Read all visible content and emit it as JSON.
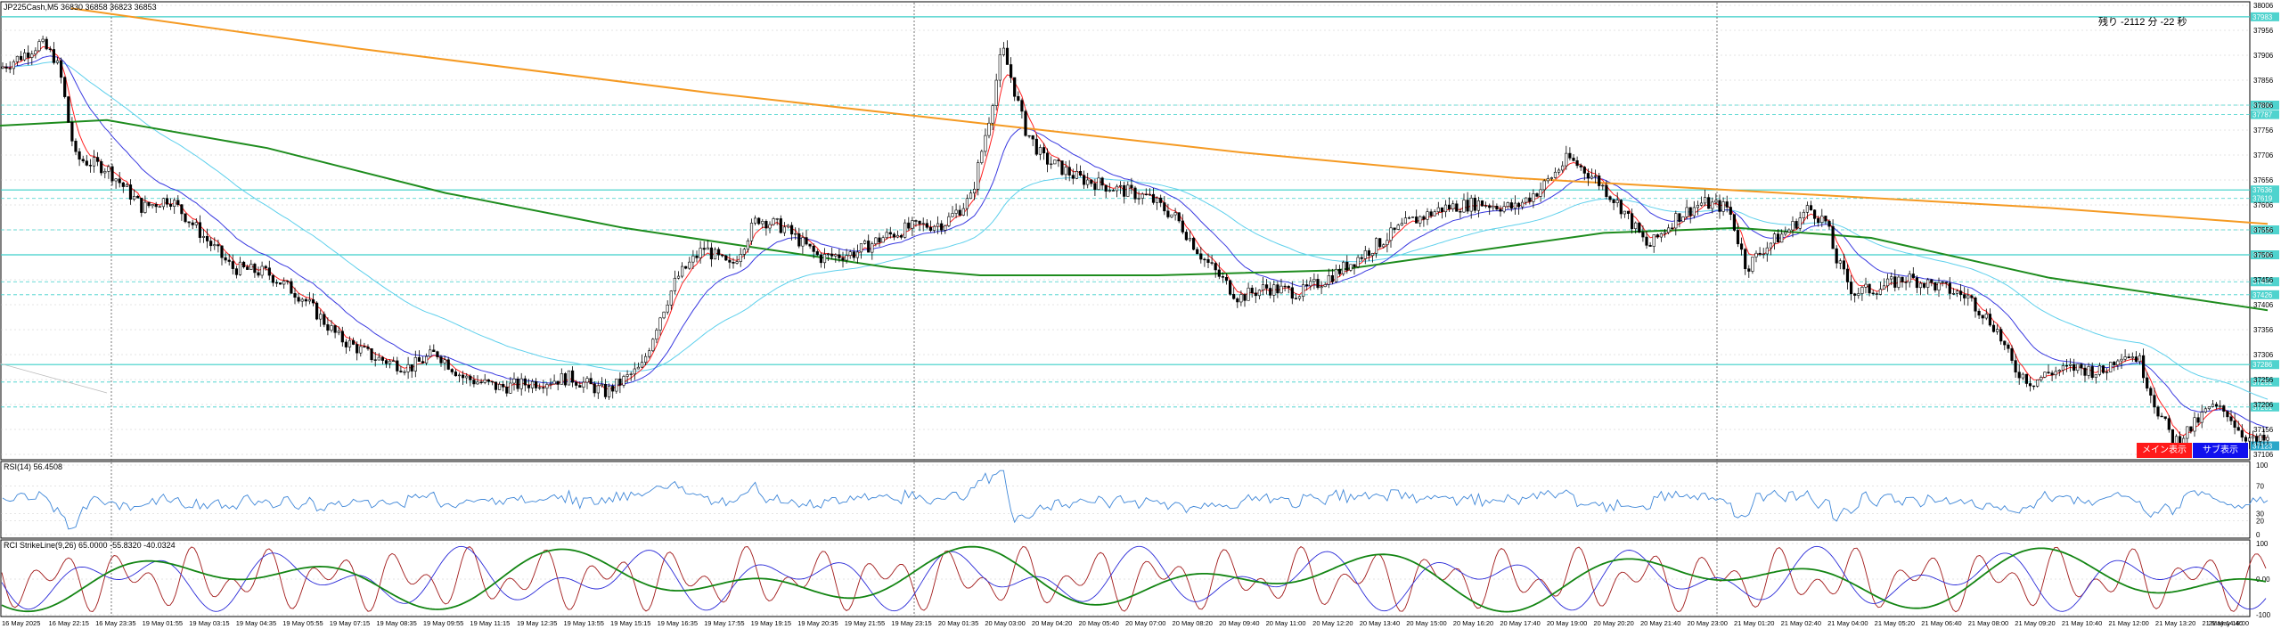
{
  "main_panel": {
    "header": "JP225Cash,M5 36830 36858 36823 36853",
    "countdown": "残り -2112 分 -22 秒",
    "buttons": {
      "main_label": "メイン表示",
      "sub_label": "サブ表示"
    },
    "price_axis_labels": [
      "38006",
      "37956",
      "37906",
      "37856",
      "37806",
      "37756",
      "37706",
      "37656",
      "37606",
      "37556",
      "37506",
      "37456",
      "37406",
      "37356",
      "37306",
      "37256",
      "37206",
      "37156",
      "37106"
    ],
    "level_tags": [
      "37983",
      "37806",
      "37787",
      "37636",
      "37619",
      "37556",
      "37506",
      "37452",
      "37426",
      "37286",
      "37251",
      "37201"
    ],
    "current_price_tag": "37123"
  },
  "rsi_panel": {
    "header": "RSI(14) 56.4508",
    "axis_labels": [
      "100",
      "70",
      "30",
      "20",
      "0"
    ]
  },
  "stoch_panel": {
    "header": "RCI StrikeLine(9,26) 65.0000 -55.8320 -40.0324",
    "axis_labels": [
      "100",
      "0.00",
      "-100"
    ]
  },
  "time_axis": [
    "16 May 2025",
    "16 May 22:15",
    "16 May 23:35",
    "19 May 01:55",
    "19 May 03:15",
    "19 May 04:35",
    "19 May 05:55",
    "19 May 07:15",
    "19 May 08:35",
    "19 May 09:55",
    "19 May 11:15",
    "19 May 12:35",
    "19 May 13:55",
    "19 May 15:15",
    "19 May 16:35",
    "19 May 17:55",
    "19 May 19:15",
    "19 May 20:35",
    "19 May 21:55",
    "19 May 23:15",
    "20 May 01:35",
    "20 May 03:00",
    "20 May 04:20",
    "20 May 05:40",
    "20 May 07:00",
    "20 May 08:20",
    "20 May 09:40",
    "20 May 11:00",
    "20 May 12:20",
    "20 May 13:40",
    "20 May 15:00",
    "20 May 16:20",
    "20 May 17:40",
    "20 May 19:00",
    "20 May 20:20",
    "20 May 21:40",
    "20 May 23:00",
    "21 May 01:20",
    "21 May 02:40",
    "21 May 04:00",
    "21 May 05:20",
    "21 May 06:40",
    "21 May 08:00",
    "21 May 09:20",
    "21 May 10:40",
    "21 May 12:00",
    "21 May 13:20",
    "21 May 14:40",
    "21 May 16:00"
  ],
  "colors": {
    "grid": "#c8c8c8",
    "level": "#3ccfc9",
    "tag": "#4fd3ce",
    "candle": "#000000",
    "fast_ma": "#ff2020",
    "mid_ma": "#3a3ae0",
    "slow_ma": "#5fd0ec",
    "ma200": "#1e8c1e",
    "ma_long": "#f59a23",
    "rsi": "#3f87d8",
    "osc_red": "#a11a1a",
    "osc_blue": "#2a2ad8",
    "osc_green": "#138513"
  },
  "chart_data": {
    "type": "line",
    "title": "JP225Cash,M5",
    "series_name": "JP225Cash",
    "waypoints": [
      [
        0,
        37880
      ],
      [
        20,
        37900
      ],
      [
        45,
        37930
      ],
      [
        62,
        37900
      ],
      [
        70,
        37850
      ],
      [
        76,
        37780
      ],
      [
        85,
        37700
      ],
      [
        120,
        37680
      ],
      [
        160,
        37600
      ],
      [
        190,
        37620
      ],
      [
        220,
        37560
      ],
      [
        260,
        37480
      ],
      [
        300,
        37470
      ],
      [
        340,
        37420
      ],
      [
        380,
        37340
      ],
      [
        420,
        37300
      ],
      [
        460,
        37280
      ],
      [
        490,
        37310
      ],
      [
        520,
        37260
      ],
      [
        560,
        37240
      ],
      [
        600,
        37250
      ],
      [
        640,
        37260
      ],
      [
        680,
        37230
      ],
      [
        720,
        37280
      ],
      [
        740,
        37380
      ],
      [
        760,
        37460
      ],
      [
        790,
        37520
      ],
      [
        820,
        37480
      ],
      [
        850,
        37580
      ],
      [
        880,
        37560
      ],
      [
        920,
        37500
      ],
      [
        960,
        37510
      ],
      [
        990,
        37540
      ],
      [
        1020,
        37560
      ],
      [
        1060,
        37570
      ],
      [
        1090,
        37620
      ],
      [
        1110,
        37780
      ],
      [
        1125,
        37920
      ],
      [
        1135,
        37860
      ],
      [
        1150,
        37760
      ],
      [
        1170,
        37700
      ],
      [
        1210,
        37660
      ],
      [
        1250,
        37640
      ],
      [
        1290,
        37620
      ],
      [
        1320,
        37580
      ],
      [
        1350,
        37500
      ],
      [
        1390,
        37420
      ],
      [
        1420,
        37440
      ],
      [
        1460,
        37430
      ],
      [
        1500,
        37470
      ],
      [
        1540,
        37520
      ],
      [
        1580,
        37570
      ],
      [
        1620,
        37600
      ],
      [
        1660,
        37610
      ],
      [
        1700,
        37600
      ],
      [
        1730,
        37640
      ],
      [
        1760,
        37700
      ],
      [
        1790,
        37660
      ],
      [
        1820,
        37600
      ],
      [
        1850,
        37520
      ],
      [
        1880,
        37580
      ],
      [
        1910,
        37610
      ],
      [
        1940,
        37600
      ],
      [
        1960,
        37480
      ],
      [
        1980,
        37520
      ],
      [
        2010,
        37560
      ],
      [
        2030,
        37600
      ],
      [
        2050,
        37570
      ],
      [
        2060,
        37500
      ],
      [
        2080,
        37430
      ],
      [
        2110,
        37440
      ],
      [
        2140,
        37460
      ],
      [
        2180,
        37440
      ],
      [
        2210,
        37420
      ],
      [
        2240,
        37360
      ],
      [
        2260,
        37280
      ],
      [
        2280,
        37250
      ],
      [
        2300,
        37270
      ],
      [
        2330,
        37280
      ],
      [
        2360,
        37270
      ],
      [
        2380,
        37310
      ],
      [
        2400,
        37300
      ],
      [
        2420,
        37200
      ],
      [
        2440,
        37130
      ],
      [
        2460,
        37160
      ],
      [
        2480,
        37200
      ],
      [
        2500,
        37190
      ],
      [
        2515,
        37150
      ],
      [
        2530,
        37130
      ],
      [
        2545,
        37135
      ]
    ],
    "ylim": [
      37106,
      38006
    ]
  }
}
